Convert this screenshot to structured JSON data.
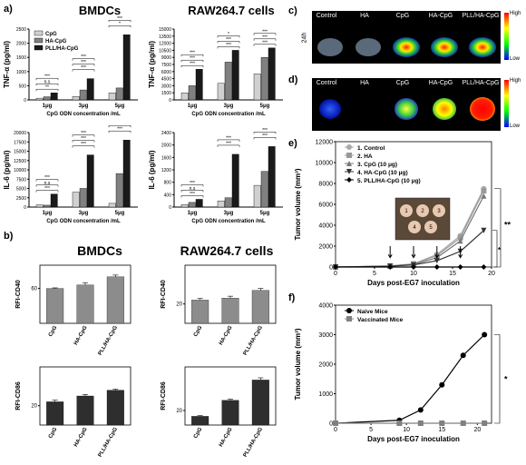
{
  "panel_labels": {
    "a": "a)",
    "b": "b)",
    "c": "c)",
    "d": "d)",
    "e": "e)",
    "f": "f)"
  },
  "titles": {
    "a_left": "BMDCs",
    "a_right": "RAW264.7 cells",
    "b_left": "BMDCs",
    "b_right": "RAW264.7 cells"
  },
  "colors": {
    "cpg": "#d0d0d0",
    "hacpg": "#808080",
    "pll": "#1a1a1a"
  },
  "c_panel": {
    "side_label": "24h",
    "groups": [
      "Control",
      "HA",
      "CpG",
      "HA-CpG",
      "PLL/HA-CpG"
    ],
    "scale_high": "High",
    "scale_low": "Low"
  },
  "d_panel": {
    "groups": [
      "Control",
      "HA",
      "CpG",
      "HA-CpG",
      "PLL/HA-CpG"
    ],
    "scale_high": "High",
    "scale_low": "Low"
  },
  "chart_data": [
    {
      "id": "a1",
      "type": "bar",
      "categories": [
        "1μg",
        "3μg",
        "5μg"
      ],
      "xlabel": "CpG ODN concentration /mL",
      "ylabel": "TNF-α (pg/ml)",
      "ylim": [
        0,
        2500
      ],
      "yticks": [
        0,
        500,
        1000,
        1500,
        2000,
        2500
      ],
      "legend": [
        "CpG",
        "HA-CpG",
        "PLL/HA-CpG"
      ],
      "series": [
        {
          "name": "CpG",
          "values": [
            60,
            120,
            250
          ]
        },
        {
          "name": "HA-CpG",
          "values": [
            110,
            350,
            420
          ]
        },
        {
          "name": "PLL/HA-CpG",
          "values": [
            250,
            750,
            2300
          ]
        }
      ],
      "annotations": [
        "**",
        "n.s",
        "***",
        "***",
        "***",
        "***",
        "*",
        "***"
      ]
    },
    {
      "id": "a2",
      "type": "bar",
      "categories": [
        "1μg",
        "3μg",
        "5μg"
      ],
      "xlabel": "CpG ODN concentration /mL",
      "ylabel": "TNF-α (pg/ml)",
      "ylim": [
        0,
        15000
      ],
      "yticks": [
        0,
        1500,
        3000,
        4500,
        6000,
        7500,
        9000,
        10500,
        12000,
        13500,
        15000
      ],
      "series": [
        {
          "name": "CpG",
          "values": [
            1500,
            3500,
            5500
          ]
        },
        {
          "name": "HA-CpG",
          "values": [
            3000,
            8000,
            9000
          ]
        },
        {
          "name": "PLL/HA-CpG",
          "values": [
            6500,
            10500,
            11000
          ]
        }
      ],
      "annotations": [
        "***",
        "***",
        "***",
        "***",
        "***",
        "*",
        "***",
        "***",
        "***"
      ]
    },
    {
      "id": "a3",
      "type": "bar",
      "categories": [
        "1μg",
        "3μg",
        "5μg"
      ],
      "xlabel": "CpG ODN concentration /mL",
      "ylabel": "IL-6 (pg/ml)",
      "ylim": [
        0,
        20000
      ],
      "yticks": [
        0,
        2500,
        5000,
        7500,
        10000,
        12500,
        15000,
        17500,
        20000
      ],
      "series": [
        {
          "name": "CpG",
          "values": [
            600,
            4000,
            1000
          ]
        },
        {
          "name": "HA-CpG",
          "values": [
            500,
            5000,
            9000
          ]
        },
        {
          "name": "PLL/HA-CpG",
          "values": [
            3500,
            14000,
            18000
          ]
        }
      ],
      "annotations": [
        "***",
        "n.s",
        "***",
        "***",
        "***",
        "***",
        "***",
        "***"
      ]
    },
    {
      "id": "a4",
      "type": "bar",
      "categories": [
        "1μg",
        "3μg",
        "5μg"
      ],
      "xlabel": "CpG ODN concentration /mL",
      "ylabel": "IL-6 (pg/ml)",
      "ylim": [
        0,
        2400
      ],
      "yticks": [
        0,
        400,
        800,
        1200,
        1600,
        2000,
        2400
      ],
      "series": [
        {
          "name": "CpG",
          "values": [
            80,
            200,
            700
          ]
        },
        {
          "name": "HA-CpG",
          "values": [
            150,
            300,
            1150
          ]
        },
        {
          "name": "PLL/HA-CpG",
          "values": [
            250,
            1700,
            1950
          ]
        }
      ],
      "annotations": [
        "***",
        "n.s",
        "***",
        "***",
        "***",
        "***",
        "***"
      ]
    },
    {
      "id": "b1",
      "type": "bar",
      "categories": [
        "CpG",
        "HA-CpG",
        "PLL/HA-CpG"
      ],
      "ylabel": "RFI-CD40",
      "ylim": [
        30,
        80
      ],
      "yticks": [
        60
      ],
      "values": [
        60,
        63,
        70
      ],
      "errors": [
        0.5,
        2,
        1.5
      ]
    },
    {
      "id": "b2",
      "type": "bar",
      "categories": [
        "CpG",
        "HA-CpG",
        "PLL/HA-CpG"
      ],
      "ylabel": "RFI-CD40",
      "ylim": [
        10,
        40
      ],
      "yticks": [
        20
      ],
      "values": [
        22,
        23,
        27
      ],
      "errors": [
        0.8,
        1,
        1
      ]
    },
    {
      "id": "b3",
      "type": "bar",
      "categories": [
        "CpG",
        "HA-CpG",
        "PLL/HA-CpG"
      ],
      "ylabel": "RFI-CD86",
      "ylim": [
        10,
        40
      ],
      "yticks": [
        20
      ],
      "values": [
        22,
        25,
        28
      ],
      "errors": [
        0.8,
        0.8,
        0.5
      ]
    },
    {
      "id": "b4",
      "type": "bar",
      "categories": [
        "CpG",
        "HA-CpG",
        "PLL/HA-CpG"
      ],
      "ylabel": "RFI-CD86",
      "ylim": [
        10,
        50
      ],
      "yticks": [
        20
      ],
      "values": [
        16,
        27,
        41
      ],
      "errors": [
        0.5,
        0.8,
        1.5
      ]
    },
    {
      "id": "e",
      "type": "line",
      "xlabel": "Days post-EG7 inoculation",
      "ylabel": "Tumor volume (mm³)",
      "xlim": [
        0,
        20
      ],
      "ylim": [
        0,
        12000
      ],
      "xticks": [
        0,
        5,
        10,
        15,
        20
      ],
      "yticks": [
        0,
        2000,
        4000,
        6000,
        8000,
        10000,
        12000
      ],
      "legend": [
        "1. Control",
        "2. HA",
        "3. CpG (10 μg)",
        "4. HA-CpG (10 μg)",
        "5. PLL/HA-CpG (10 μg)"
      ],
      "inset_labels": [
        "1",
        "2",
        "3",
        "4",
        "5"
      ],
      "significance": [
        "**",
        "*"
      ],
      "series": [
        {
          "name": "1. Control",
          "x": [
            0,
            7,
            10,
            13,
            16,
            19
          ],
          "y": [
            0,
            100,
            300,
            1200,
            3000,
            7500
          ]
        },
        {
          "name": "2. HA",
          "x": [
            0,
            7,
            10,
            13,
            16,
            19
          ],
          "y": [
            0,
            100,
            300,
            1100,
            2800,
            7300
          ]
        },
        {
          "name": "3. CpG (10 μg)",
          "x": [
            0,
            7,
            10,
            13,
            16,
            19
          ],
          "y": [
            0,
            90,
            250,
            900,
            2500,
            6800
          ]
        },
        {
          "name": "4. HA-CpG (10 μg)",
          "x": [
            0,
            7,
            10,
            13,
            16,
            19
          ],
          "y": [
            0,
            80,
            200,
            600,
            1500,
            3500
          ]
        },
        {
          "name": "5. PLL/HA-CpG (10 μg)",
          "x": [
            0,
            7,
            10,
            13,
            16,
            19
          ],
          "y": [
            0,
            0,
            0,
            0,
            0,
            0
          ]
        }
      ]
    },
    {
      "id": "f",
      "type": "line",
      "xlabel": "Days post-EG7 inoculation",
      "ylabel": "Tumor volume (mm³)",
      "xlim": [
        0,
        22
      ],
      "ylim": [
        0,
        4000
      ],
      "xticks": [
        0,
        5,
        10,
        15,
        20
      ],
      "yticks": [
        0,
        1000,
        2000,
        3000,
        4000
      ],
      "legend": [
        "Naive Mice",
        "Vaccinated Mice"
      ],
      "significance": [
        "*"
      ],
      "series": [
        {
          "name": "Naive Mice",
          "x": [
            0,
            9,
            12,
            15,
            18,
            21
          ],
          "y": [
            0,
            100,
            450,
            1300,
            2300,
            3000
          ]
        },
        {
          "name": "Vaccinated Mice",
          "x": [
            0,
            9,
            12,
            15,
            18,
            21
          ],
          "y": [
            0,
            0,
            0,
            0,
            0,
            0
          ]
        }
      ]
    }
  ]
}
